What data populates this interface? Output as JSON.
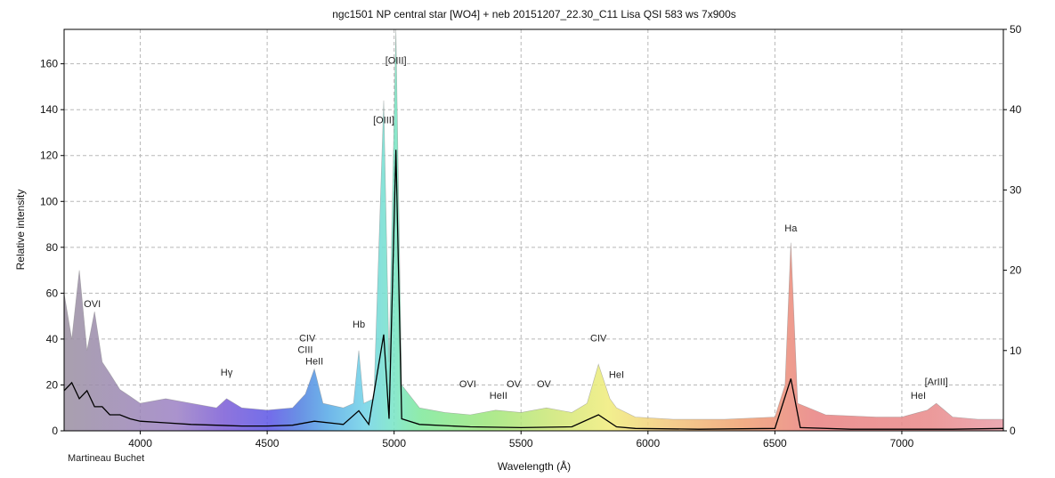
{
  "chart_data": {
    "type": "line",
    "title": "ngc1501 NP  central star [WO4] + neb  20151207_22.30_C11 Lisa QSI 583 ws   7x900s",
    "xlabel": "Wavelength (Å)",
    "ylabel": "Relative intensity",
    "credit": "Martineau Buchet",
    "xlim": [
      3700,
      7400
    ],
    "ylim": [
      0,
      175
    ],
    "y2lim": [
      0,
      50
    ],
    "xticks": [
      4000,
      4500,
      5000,
      5500,
      6000,
      6500,
      7000
    ],
    "yticks": [
      0,
      20,
      40,
      60,
      80,
      100,
      120,
      140,
      160
    ],
    "y2ticks": [
      0,
      10,
      20,
      30,
      40,
      50
    ],
    "grid": true,
    "fill": "rainbow by wavelength",
    "series": [
      {
        "axis": "left",
        "style": "filled",
        "x": [
          3700,
          3730,
          3760,
          3790,
          3820,
          3850,
          3880,
          3920,
          3960,
          4000,
          4100,
          4200,
          4300,
          4340,
          4400,
          4500,
          4600,
          4650,
          4686,
          4720,
          4800,
          4840,
          4861,
          4880,
          4920,
          4959,
          4980,
          5007,
          5030,
          5100,
          5200,
          5300,
          5400,
          5500,
          5600,
          5700,
          5760,
          5805,
          5850,
          5876,
          5950,
          6100,
          6300,
          6500,
          6540,
          6563,
          6590,
          6700,
          6900,
          7000,
          7065,
          7100,
          7136,
          7200,
          7300,
          7400
        ],
        "y": [
          60,
          40,
          70,
          35,
          52,
          30,
          25,
          18,
          15,
          12,
          14,
          12,
          10,
          14,
          10,
          9,
          10,
          16,
          27,
          12,
          10,
          12,
          35,
          12,
          14,
          144,
          30,
          175,
          20,
          10,
          8,
          7,
          9,
          8,
          10,
          8,
          12,
          29,
          14,
          10,
          6,
          5,
          5,
          6,
          20,
          82,
          12,
          7,
          6,
          6,
          8,
          9,
          12,
          6,
          5,
          5
        ]
      },
      {
        "axis": "right",
        "style": "line",
        "x": [
          3700,
          3730,
          3760,
          3790,
          3820,
          3850,
          3880,
          3920,
          3960,
          4000,
          4100,
          4200,
          4300,
          4400,
          4500,
          4600,
          4686,
          4800,
          4861,
          4900,
          4959,
          4980,
          5007,
          5030,
          5100,
          5300,
          5500,
          5700,
          5805,
          5876,
          5950,
          6200,
          6500,
          6563,
          6600,
          6800,
          7000,
          7200,
          7400
        ],
        "y": [
          5,
          6,
          4,
          5,
          3,
          3,
          2,
          2,
          1.5,
          1.2,
          1.0,
          0.8,
          0.7,
          0.6,
          0.6,
          0.7,
          1.2,
          0.8,
          2.5,
          0.8,
          12,
          1.5,
          35,
          1.5,
          0.8,
          0.5,
          0.4,
          0.5,
          2.0,
          0.5,
          0.3,
          0.2,
          0.3,
          6.5,
          0.4,
          0.2,
          0.2,
          0.2,
          0.3
        ]
      }
    ],
    "annotations": [
      {
        "text": "OVI",
        "x": 3811,
        "y": 54
      },
      {
        "text": "Hγ",
        "x": 4340,
        "y": 24
      },
      {
        "text": "CIV",
        "x": 4658,
        "y": 39
      },
      {
        "text": "CIII",
        "x": 4650,
        "y": 34
      },
      {
        "text": "HeII",
        "x": 4686,
        "y": 29
      },
      {
        "text": "Hb",
        "x": 4861,
        "y": 45
      },
      {
        "text": "[OIII]",
        "x": 4959,
        "y": 134
      },
      {
        "text": "[OIII]",
        "x": 5007,
        "y": 160
      },
      {
        "text": "OVI",
        "x": 5290,
        "y": 19
      },
      {
        "text": "HeII",
        "x": 5411,
        "y": 14
      },
      {
        "text": "OV",
        "x": 5471,
        "y": 19
      },
      {
        "text": "OV",
        "x": 5590,
        "y": 19
      },
      {
        "text": "CIV",
        "x": 5805,
        "y": 39
      },
      {
        "text": "HeI",
        "x": 5876,
        "y": 23
      },
      {
        "text": "Ha",
        "x": 6563,
        "y": 87
      },
      {
        "text": "HeI",
        "x": 7065,
        "y": 14
      },
      {
        "text": "[ArIII]",
        "x": 7136,
        "y": 20
      }
    ]
  }
}
